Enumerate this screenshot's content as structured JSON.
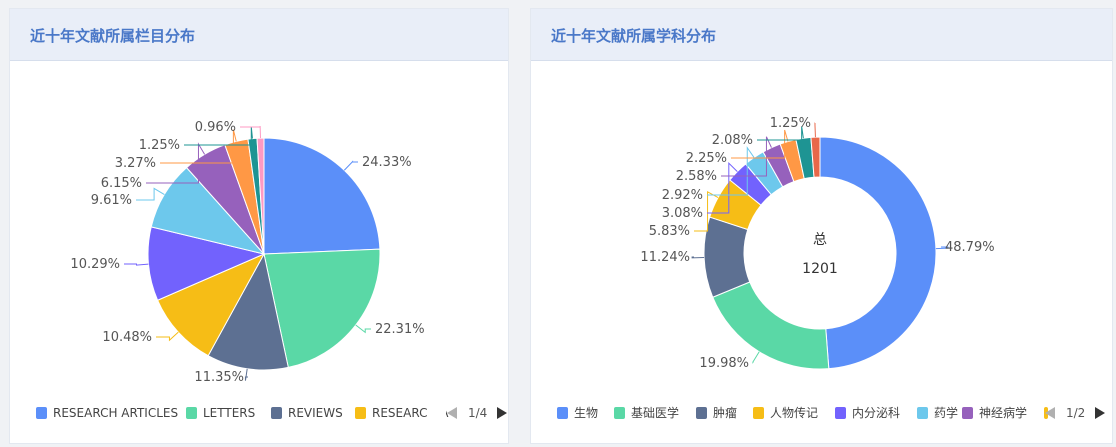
{
  "panels": [
    {
      "title": "近十年文献所属栏目分布"
    },
    {
      "title": "近十年文献所属学科分布"
    }
  ],
  "chart_data": [
    {
      "type": "pie",
      "title": "近十年文献所属栏目分布",
      "slices": [
        {
          "value": 24.33,
          "label": "24.33%",
          "color": "#5b8ff9"
        },
        {
          "value": 22.31,
          "label": "22.31%",
          "color": "#5ad8a6"
        },
        {
          "value": 11.35,
          "label": "11.35%",
          "color": "#5d7092"
        },
        {
          "value": 10.48,
          "label": "10.48%",
          "color": "#f6bd16"
        },
        {
          "value": 10.29,
          "label": "10.29%",
          "color": "#7262fd"
        },
        {
          "value": 9.61,
          "label": "9.61%",
          "color": "#6dc8ec"
        },
        {
          "value": 6.15,
          "label": "6.15%",
          "color": "#9661bc"
        },
        {
          "value": 3.27,
          "label": "3.27%",
          "color": "#ff9845"
        },
        {
          "value": 1.25,
          "label": "1.25%",
          "color": "#1e9493"
        },
        {
          "value": 0.96,
          "label": "0.96%",
          "color": "#ff99c3"
        }
      ],
      "legend": [
        {
          "name": "RESEARCH ARTICLES",
          "color": "#5b8ff9"
        },
        {
          "name": "LETTERS",
          "color": "#5ad8a6"
        },
        {
          "name": "REVIEWS",
          "color": "#5d7092"
        },
        {
          "name": "RESEARCH A",
          "color": "#f6bd16"
        }
      ],
      "legend_page": "1/4"
    },
    {
      "type": "pie",
      "variant": "donut",
      "title": "近十年文献所属学科分布",
      "center_label": "总",
      "center_value": "1201",
      "slices": [
        {
          "value": 48.79,
          "label": "48.79%",
          "color": "#5b8ff9"
        },
        {
          "value": 19.98,
          "label": "19.98%",
          "color": "#5ad8a6"
        },
        {
          "value": 11.24,
          "label": "11.24%",
          "color": "#5d7092"
        },
        {
          "value": 5.83,
          "label": "5.83%",
          "color": "#f6bd16"
        },
        {
          "value": 3.08,
          "label": "3.08%",
          "color": "#7262fd"
        },
        {
          "value": 2.92,
          "label": "2.92%",
          "color": "#6dc8ec"
        },
        {
          "value": 2.58,
          "label": "2.58%",
          "color": "#9661bc"
        },
        {
          "value": 2.25,
          "label": "2.25%",
          "color": "#ff9845"
        },
        {
          "value": 2.08,
          "label": "2.08%",
          "color": "#1e9493"
        },
        {
          "value": 1.25,
          "label": "1.25%",
          "color": "#e8684a"
        }
      ],
      "legend": [
        {
          "name": "生物",
          "color": "#5b8ff9"
        },
        {
          "name": "基础医学",
          "color": "#5ad8a6"
        },
        {
          "name": "肿瘤",
          "color": "#5d7092"
        },
        {
          "name": "人物传记",
          "color": "#f6bd16"
        },
        {
          "name": "内分泌科",
          "color": "#7262fd"
        },
        {
          "name": "药学",
          "color": "#6dc8ec"
        },
        {
          "name": "神经病学",
          "color": "#9661bc"
        },
        {
          "name": "",
          "color": "#f6bd16"
        }
      ],
      "legend_page": "1/2"
    }
  ]
}
